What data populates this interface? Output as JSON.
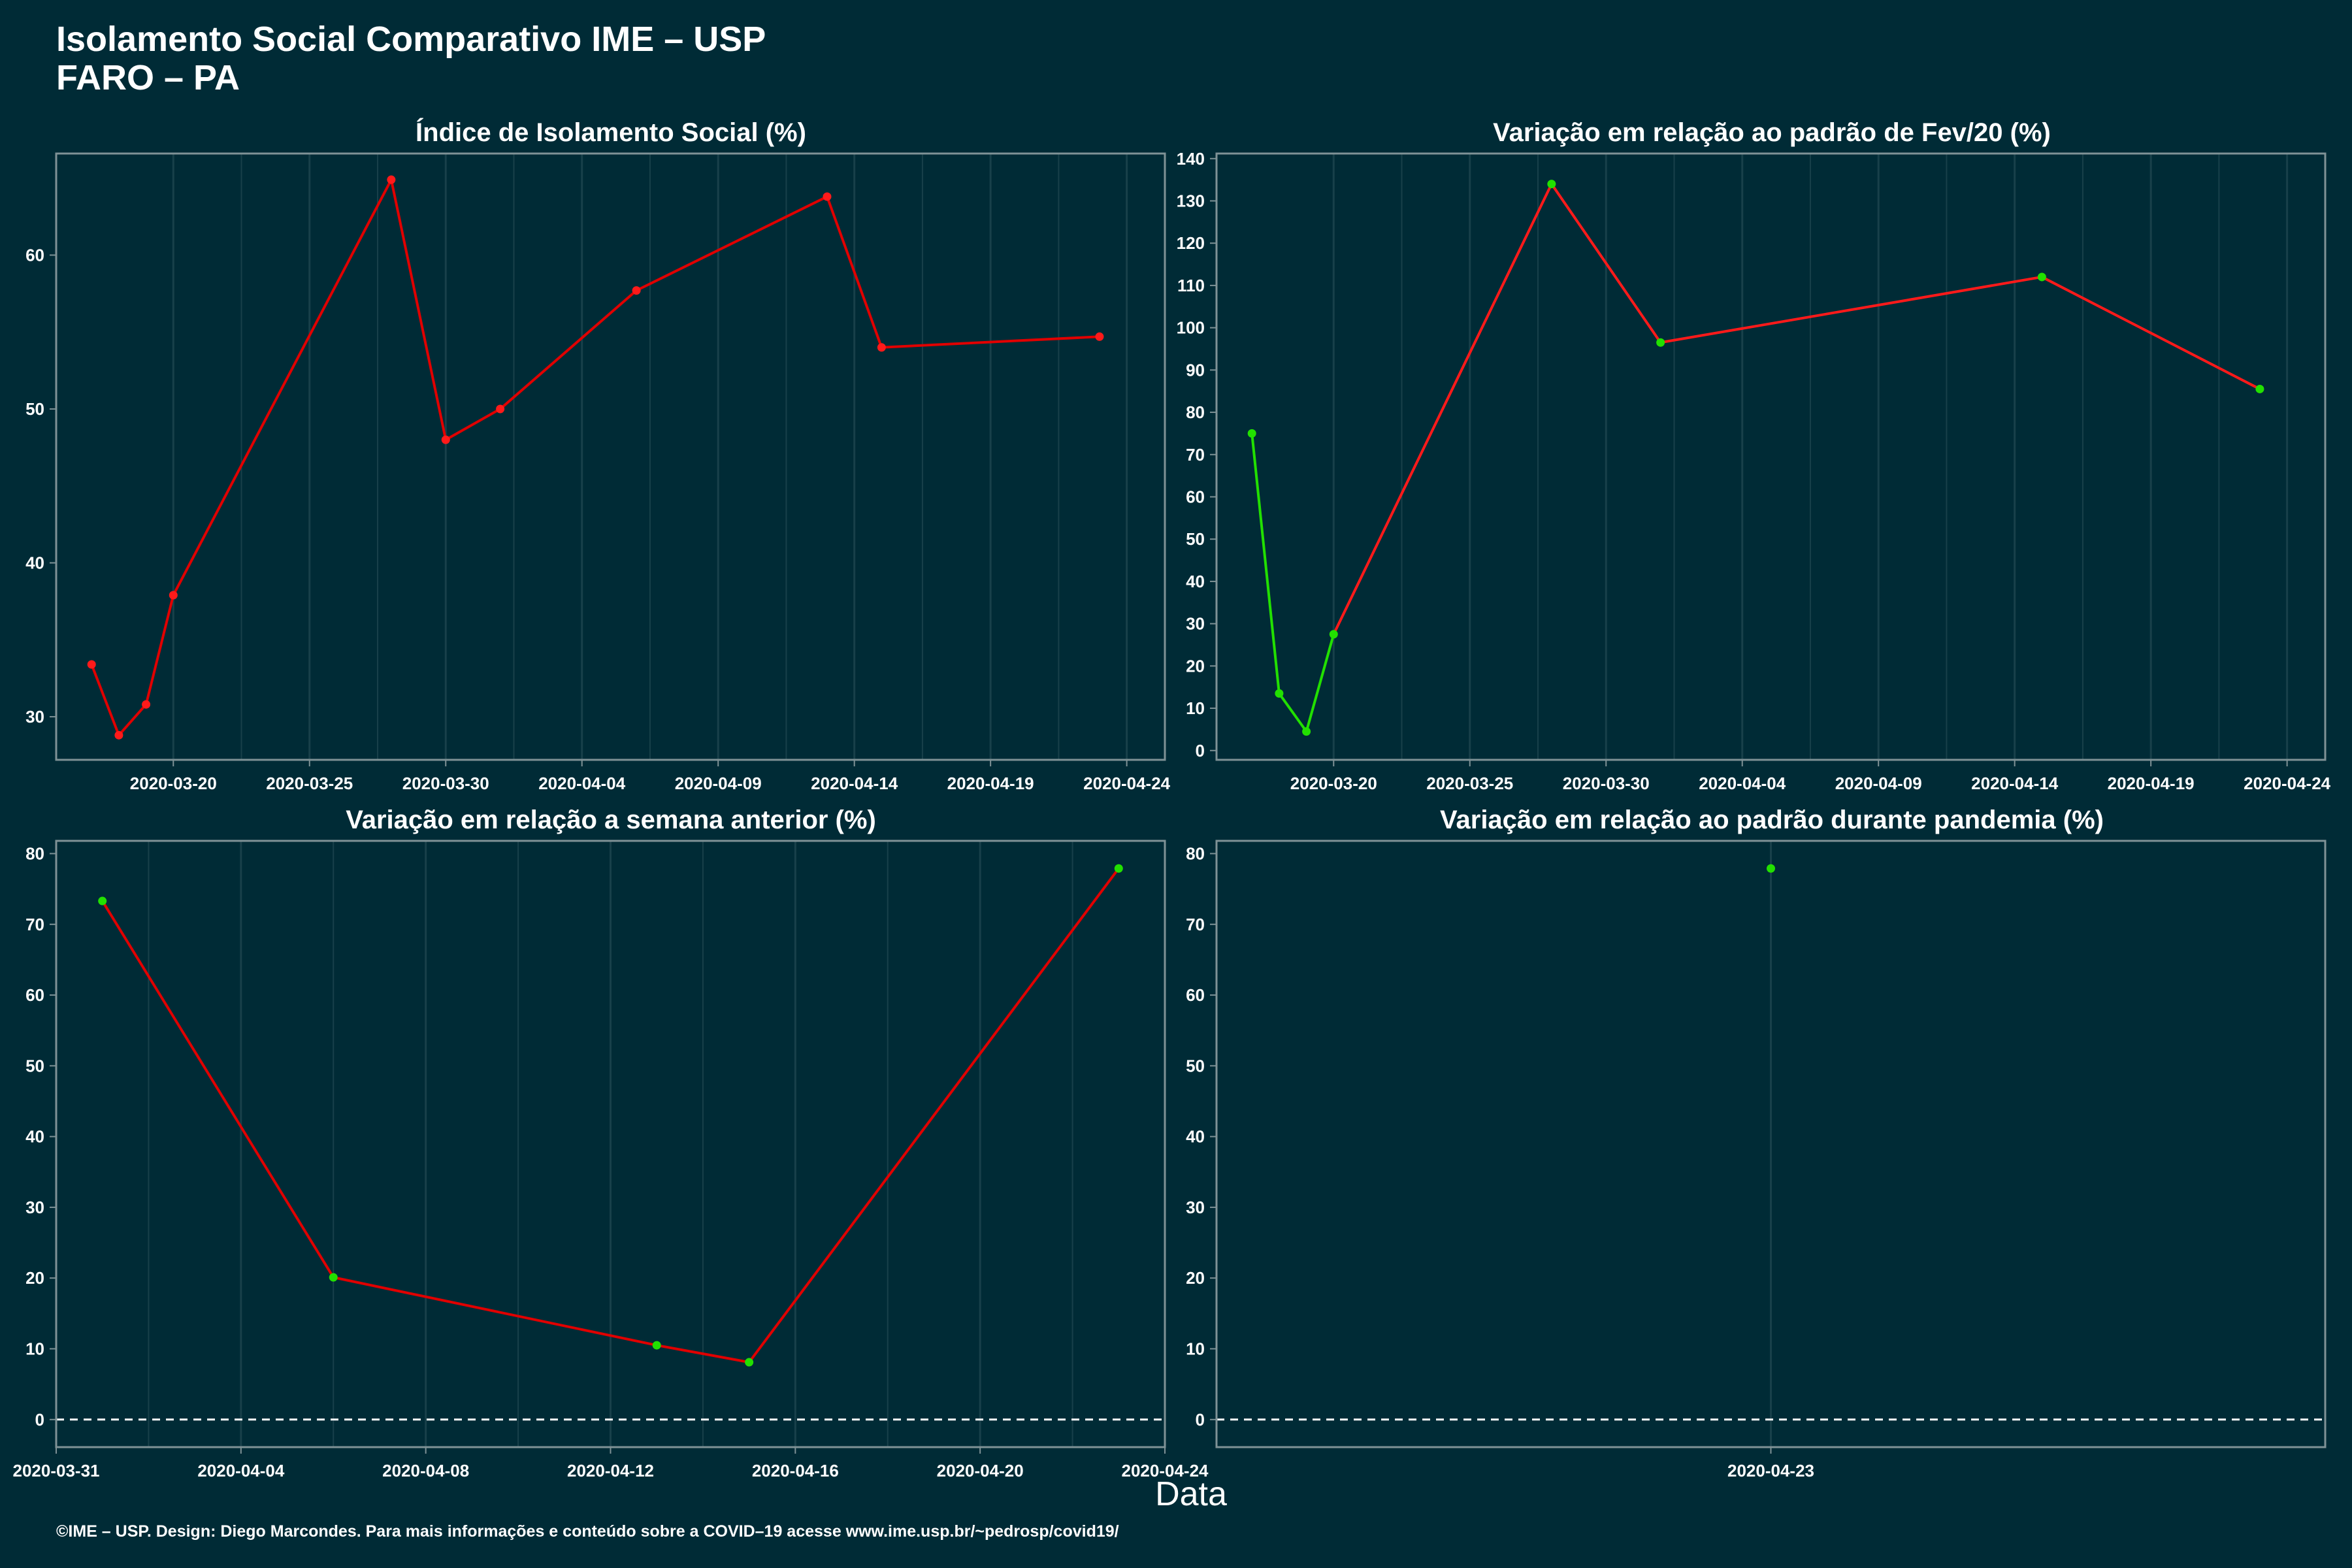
{
  "header": {
    "title_line1": "Isolamento Social Comparativo IME – USP",
    "title_line2": "FARO – PA"
  },
  "xlabel": "Data",
  "caption": "©IME – USP. Design: Diego Marcondes. Para mais informações e conteúdo sobre a COVID–19 acesse www.ime.usp.br/~pedrosp/covid19/",
  "colors": {
    "background": "#002b36",
    "panel_border": "#7f9296",
    "grid": "#18404a",
    "line": "#e00000",
    "point_red": "#ff1a1a",
    "point_green": "#22e000",
    "text": "#ffffff"
  },
  "chart_data": [
    {
      "type": "line",
      "title": "Índice de Isolamento Social (%)",
      "x_dates": [
        "2020-03-17",
        "2020-03-18",
        "2020-03-19",
        "2020-03-20",
        "2020-03-28",
        "2020-03-30",
        "2020-04-01",
        "2020-04-06",
        "2020-04-13",
        "2020-04-15",
        "2020-04-23"
      ],
      "values": [
        33.4,
        28.8,
        30.8,
        37.9,
        64.9,
        48.0,
        50.0,
        57.7,
        63.8,
        54.0,
        54.7
      ],
      "point_colors": [
        "red",
        "red",
        "red",
        "red",
        "red",
        "red",
        "red",
        "red",
        "red",
        "red",
        "red"
      ],
      "x_ticks": [
        "2020-03-20",
        "2020-03-25",
        "2020-03-30",
        "2020-04-04",
        "2020-04-09",
        "2020-04-14",
        "2020-04-19",
        "2020-04-24"
      ],
      "y_ticks": [
        30,
        40,
        50,
        60
      ],
      "xlim": [
        "2020-03-15.7",
        "2020-04-25.4"
      ],
      "ylim": [
        27.2,
        66.6
      ],
      "grid": "vertical-only",
      "zero_line": false
    },
    {
      "type": "line",
      "title": "Variação em relação ao padrão de Fev/20 (%)",
      "x_dates": [
        "2020-03-17",
        "2020-03-18",
        "2020-03-19",
        "2020-03-20",
        "2020-03-28",
        "2020-04-01",
        "2020-04-15",
        "2020-04-23"
      ],
      "values": [
        75,
        13.5,
        4.5,
        27.5,
        134,
        96.5,
        112,
        85.5
      ],
      "point_colors": [
        "green",
        "green",
        "green",
        "green",
        "green",
        "green",
        "green",
        "green"
      ],
      "segment_colors": [
        "green",
        "green",
        "green",
        "red",
        "red",
        "red",
        "red"
      ],
      "x_ticks": [
        "2020-03-20",
        "2020-03-25",
        "2020-03-30",
        "2020-04-04",
        "2020-04-09",
        "2020-04-14",
        "2020-04-19",
        "2020-04-24"
      ],
      "y_ticks": [
        0,
        10,
        20,
        30,
        40,
        50,
        60,
        70,
        80,
        90,
        100,
        110,
        120,
        130,
        140
      ],
      "xlim": [
        "2020-03-15.7",
        "2020-04-25.4"
      ],
      "ylim": [
        -2.2,
        141.2
      ],
      "grid": "vertical-only",
      "zero_line": false
    },
    {
      "type": "line",
      "title": "Variação em relação a semana anterior (%)",
      "x_dates": [
        "2020-04-01",
        "2020-04-06",
        "2020-04-13",
        "2020-04-15",
        "2020-04-23"
      ],
      "values": [
        73.3,
        20.1,
        10.5,
        8.1,
        77.9
      ],
      "point_colors": [
        "green",
        "green",
        "green",
        "green",
        "green"
      ],
      "x_ticks": [
        "2020-03-31",
        "2020-04-04",
        "2020-04-08",
        "2020-04-12",
        "2020-04-16",
        "2020-04-20",
        "2020-04-24"
      ],
      "y_ticks": [
        0,
        10,
        20,
        30,
        40,
        50,
        60,
        70,
        80
      ],
      "xlim": [
        "2020-03-31",
        "2020-04-24"
      ],
      "ylim": [
        -3.9,
        81.8
      ],
      "grid": "vertical-only",
      "zero_line": true
    },
    {
      "type": "scatter",
      "title": "Variação em relação ao padrão durante pandemia (%)",
      "x_dates": [
        "2020-04-23"
      ],
      "values": [
        77.9
      ],
      "point_colors": [
        "green"
      ],
      "x_ticks": [
        "2020-04-23"
      ],
      "y_ticks": [
        0,
        10,
        20,
        30,
        40,
        50,
        60,
        70,
        80
      ],
      "xlim": [
        "2020-04-22.4",
        "2020-04-23.6"
      ],
      "ylim": [
        -3.9,
        81.8
      ],
      "grid": "vertical-only",
      "zero_line": true
    }
  ]
}
